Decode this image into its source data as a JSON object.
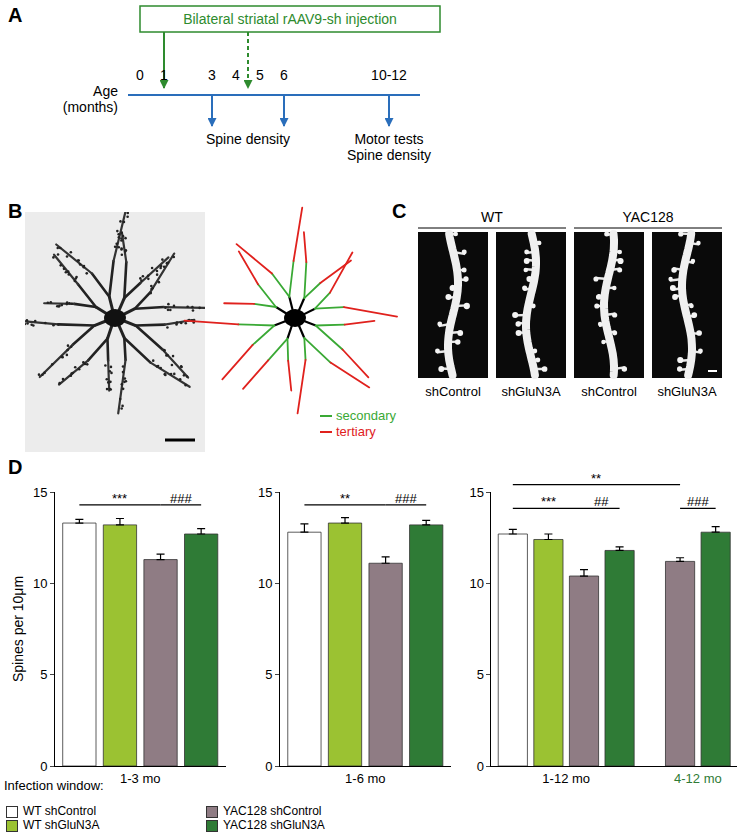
{
  "panel_labels": [
    "A",
    "B",
    "C",
    "D"
  ],
  "panel_a": {
    "injection_label": "Bilateral striatal rAAV9-sh injection",
    "axis_label": [
      "Age",
      "(months)"
    ],
    "ticks": [
      0,
      1,
      3,
      4,
      5,
      6,
      {
        "value": 11,
        "label": "10-12"
      }
    ],
    "injections": [
      {
        "at": 1,
        "line_style": "solid"
      },
      {
        "at": 4.5,
        "line_style": "dashed"
      }
    ],
    "measurements": [
      {
        "at": [
          3,
          6
        ],
        "labels": [
          "Spine density"
        ]
      },
      {
        "at": [
          11
        ],
        "labels": [
          "Motor tests",
          "Spine density"
        ]
      }
    ]
  },
  "panel_b": {
    "tracing_key": [
      {
        "name": "secondary",
        "color": "#3aa935"
      },
      {
        "name": "tertiary",
        "color": "#e0211d"
      }
    ]
  },
  "panel_c": {
    "groups": [
      {
        "name": "WT",
        "conditions": [
          "shControl",
          "shGluN3A"
        ]
      },
      {
        "name": "YAC128",
        "conditions": [
          "shControl",
          "shGluN3A"
        ]
      }
    ]
  },
  "chart_data": [
    {
      "type": "bar",
      "categories": [
        "1-3 mo"
      ],
      "x_label": "Infection window:",
      "y_label": "Spines per 10μm",
      "ylim": [
        0,
        15
      ],
      "yticks": [
        0,
        5,
        10,
        15
      ],
      "grid": false,
      "legend": "bottom",
      "series": [
        {
          "name": "WT shControl",
          "color": "#ffffff",
          "values": [
            13.3
          ],
          "errors": [
            0.2
          ]
        },
        {
          "name": "WT shGluN3A",
          "color": "#9bc232",
          "values": [
            13.2
          ],
          "errors": [
            0.35
          ]
        },
        {
          "name": "YAC128 shControl",
          "color": "#8f7c84",
          "values": [
            11.3
          ],
          "errors": [
            0.3
          ]
        },
        {
          "name": "YAC128 shGluN3A",
          "color": "#2f7b36",
          "values": [
            12.7
          ],
          "errors": [
            0.3
          ]
        }
      ],
      "annotations": [
        {
          "text": "***",
          "from": [
            "1-3 mo",
            "WT shControl"
          ],
          "to": [
            "1-3 mo",
            "YAC128 shControl"
          ],
          "y": 14.3
        },
        {
          "text": "###",
          "from": [
            "1-3 mo",
            "YAC128 shControl"
          ],
          "to": [
            "1-3 mo",
            "YAC128 shGluN3A"
          ],
          "y": 14.3
        }
      ]
    },
    {
      "type": "bar",
      "categories": [
        "1-6 mo"
      ],
      "ylim": [
        0,
        15
      ],
      "yticks": [
        0,
        5,
        10,
        15
      ],
      "grid": false,
      "series": [
        {
          "name": "WT shControl",
          "color": "#ffffff",
          "values": [
            12.8
          ],
          "errors": [
            0.45
          ]
        },
        {
          "name": "WT shGluN3A",
          "color": "#9bc232",
          "values": [
            13.3
          ],
          "errors": [
            0.3
          ]
        },
        {
          "name": "YAC128 shControl",
          "color": "#8f7c84",
          "values": [
            11.1
          ],
          "errors": [
            0.35
          ]
        },
        {
          "name": "YAC128 shGluN3A",
          "color": "#2f7b36",
          "values": [
            13.2
          ],
          "errors": [
            0.25
          ]
        }
      ],
      "annotations": [
        {
          "text": "**",
          "from": [
            "1-6 mo",
            "WT shControl"
          ],
          "to": [
            "1-6 mo",
            "YAC128 shControl"
          ],
          "y": 14.3
        },
        {
          "text": "###",
          "from": [
            "1-6 mo",
            "YAC128 shControl"
          ],
          "to": [
            "1-6 mo",
            "YAC128 shGluN3A"
          ],
          "y": 14.3
        }
      ]
    },
    {
      "type": "bar",
      "categories": [
        "1-12 mo",
        "4-12 mo"
      ],
      "ylim": [
        0,
        15
      ],
      "yticks": [
        0,
        5,
        10,
        15
      ],
      "grid": false,
      "series": [
        {
          "name": "WT shControl",
          "color": "#ffffff",
          "values": [
            12.7,
            null
          ],
          "errors": [
            0.25,
            null
          ]
        },
        {
          "name": "WT shGluN3A",
          "color": "#9bc232",
          "values": [
            12.4,
            null
          ],
          "errors": [
            0.3,
            null
          ]
        },
        {
          "name": "YAC128 shControl",
          "color": "#8f7c84",
          "values": [
            10.4,
            11.2
          ],
          "errors": [
            0.35,
            0.2
          ]
        },
        {
          "name": "YAC128 shGluN3A",
          "color": "#2f7b36",
          "values": [
            11.8,
            12.8
          ],
          "errors": [
            0.2,
            0.3
          ]
        }
      ],
      "annotations": [
        {
          "text": "**",
          "from": [
            "1-12 mo",
            "WT shControl"
          ],
          "to": [
            "4-12 mo",
            "YAC128 shControl"
          ],
          "y": 15.4
        },
        {
          "text": "***",
          "from": [
            "1-12 mo",
            "WT shControl"
          ],
          "to": [
            "1-12 mo",
            "YAC128 shControl"
          ],
          "y": 14.1
        },
        {
          "text": "##",
          "from": [
            "1-12 mo",
            "YAC128 shControl"
          ],
          "to": [
            "1-12 mo",
            "YAC128 shGluN3A"
          ],
          "y": 14.1
        },
        {
          "text": "###",
          "from": [
            "4-12 mo",
            "YAC128 shControl"
          ],
          "to": [
            "4-12 mo",
            "YAC128 shGluN3A"
          ],
          "y": 14.1
        }
      ]
    }
  ]
}
